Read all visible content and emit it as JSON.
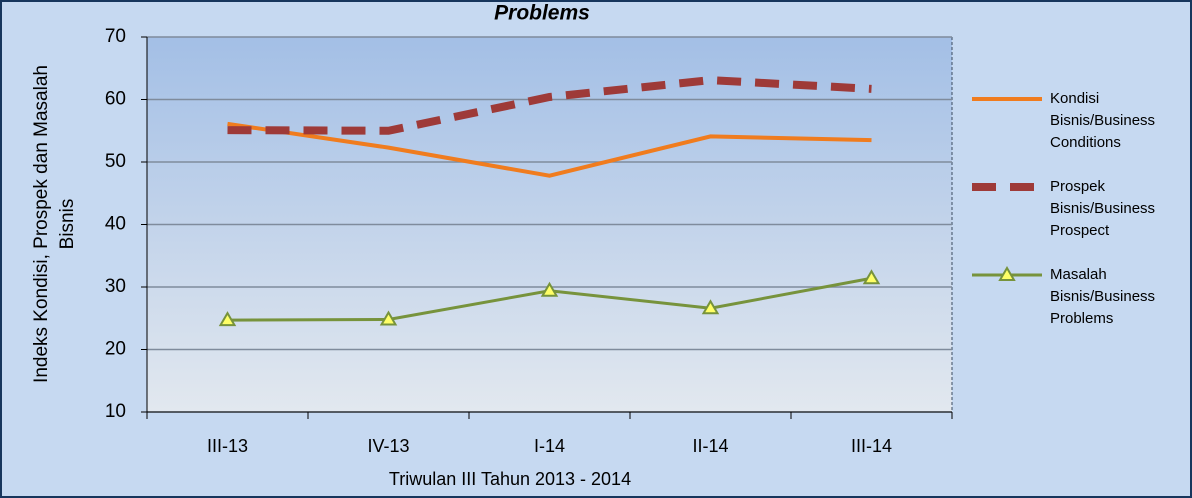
{
  "chart_data": {
    "type": "line",
    "title": "Problems",
    "y_label": [
      "Indeks Kondisi, Prospek  dan Masalah",
      "Bisnis"
    ],
    "x_label": "Triwulan III Tahun 2013 - 2014",
    "categories": [
      "III-13",
      "IV-13",
      "I-14",
      "II-14",
      "III-14"
    ],
    "series": [
      {
        "name": "Kondisi Bisnis/Business Conditions",
        "color": "#f07c1e",
        "style": "solid",
        "values": [
          56.1,
          52.3,
          47.8,
          54.1,
          53.5
        ]
      },
      {
        "name": "Prospek Bisnis/Business Prospect",
        "color": "#9e3a38",
        "style": "dashed",
        "values": [
          55.1,
          55.0,
          60.4,
          63.1,
          61.7
        ]
      },
      {
        "name": "Masalah Bisnis/Business Problems",
        "color": "#77933c",
        "style": "triangle",
        "values": [
          24.7,
          24.8,
          29.4,
          26.6,
          31.4
        ]
      }
    ],
    "ylim": [
      10,
      70
    ],
    "yticks": [
      10,
      20,
      30,
      40,
      50,
      60,
      70
    ],
    "grid": true
  }
}
